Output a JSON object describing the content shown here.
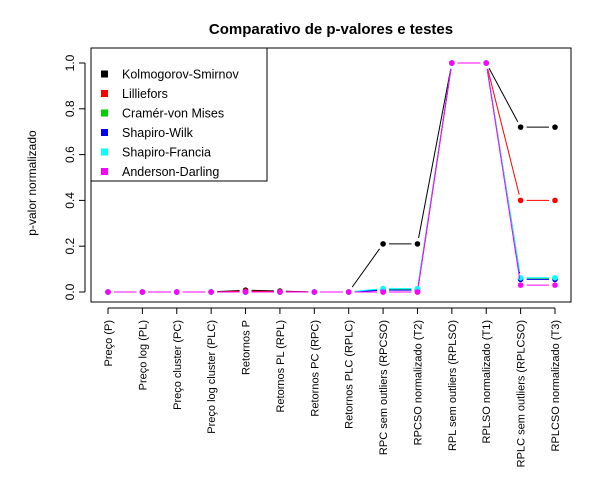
{
  "chart_data": {
    "type": "line",
    "title": "Comparativo de p-valores e testes",
    "xlabel": "",
    "ylabel": "p-valor normalizado",
    "ylim": [
      0,
      1
    ],
    "yticks": [
      "0.0",
      "0.2",
      "0.4",
      "0.6",
      "0.8",
      "1.0"
    ],
    "categories": [
      "Preço (P)",
      "Preço log (PL)",
      "Preço cluster (PC)",
      "Preço log cluster (PLC)",
      "Retornos P",
      "Retornos PL (RPL)",
      "Retornos PC (RPC)",
      "Retornos PLC (RPLC)",
      "RPC sem outliers (RPCSO)",
      "RPCSO normalizado (T2)",
      "RPL sem outliers (RPLSO)",
      "RPLSO normalizado (T1)",
      "RPLC sem outliers (RPLCSO)",
      "RPLCSO normalizado (T3)"
    ],
    "legend_position": "top-left",
    "grid": false,
    "series": [
      {
        "name": "Kolmogorov-Smirnov",
        "color": "#000000",
        "values": [
          0,
          0,
          0,
          0,
          0.008,
          0.004,
          0,
          0,
          0.21,
          0.21,
          1.0,
          1.0,
          0.72,
          0.72
        ]
      },
      {
        "name": "Lilliefors",
        "color": "#ff0000",
        "values": [
          0,
          0,
          0,
          0,
          0.004,
          0.002,
          0,
          0,
          0,
          0,
          1.0,
          1.0,
          0.4,
          0.4
        ]
      },
      {
        "name": "Cramér-von Mises",
        "color": "#00cd00",
        "values": [
          0,
          0,
          0,
          0,
          0,
          0,
          0,
          0,
          0.012,
          0.012,
          1.0,
          1.0,
          0.06,
          0.06
        ]
      },
      {
        "name": "Shapiro-Wilk",
        "color": "#0000ff",
        "values": [
          0,
          0,
          0,
          0,
          0,
          0,
          0,
          0,
          0.008,
          0.008,
          1.0,
          1.0,
          0.055,
          0.055
        ]
      },
      {
        "name": "Shapiro-Francia",
        "color": "#00ffff",
        "values": [
          0,
          0,
          0,
          0,
          0,
          0,
          0,
          0,
          0.015,
          0.015,
          1.0,
          1.0,
          0.062,
          0.062
        ]
      },
      {
        "name": "Anderson-Darling",
        "color": "#ff00ff",
        "values": [
          0,
          0,
          0,
          0,
          0,
          0,
          0,
          0,
          0,
          0,
          1.0,
          1.0,
          0.03,
          0.03
        ]
      }
    ]
  }
}
